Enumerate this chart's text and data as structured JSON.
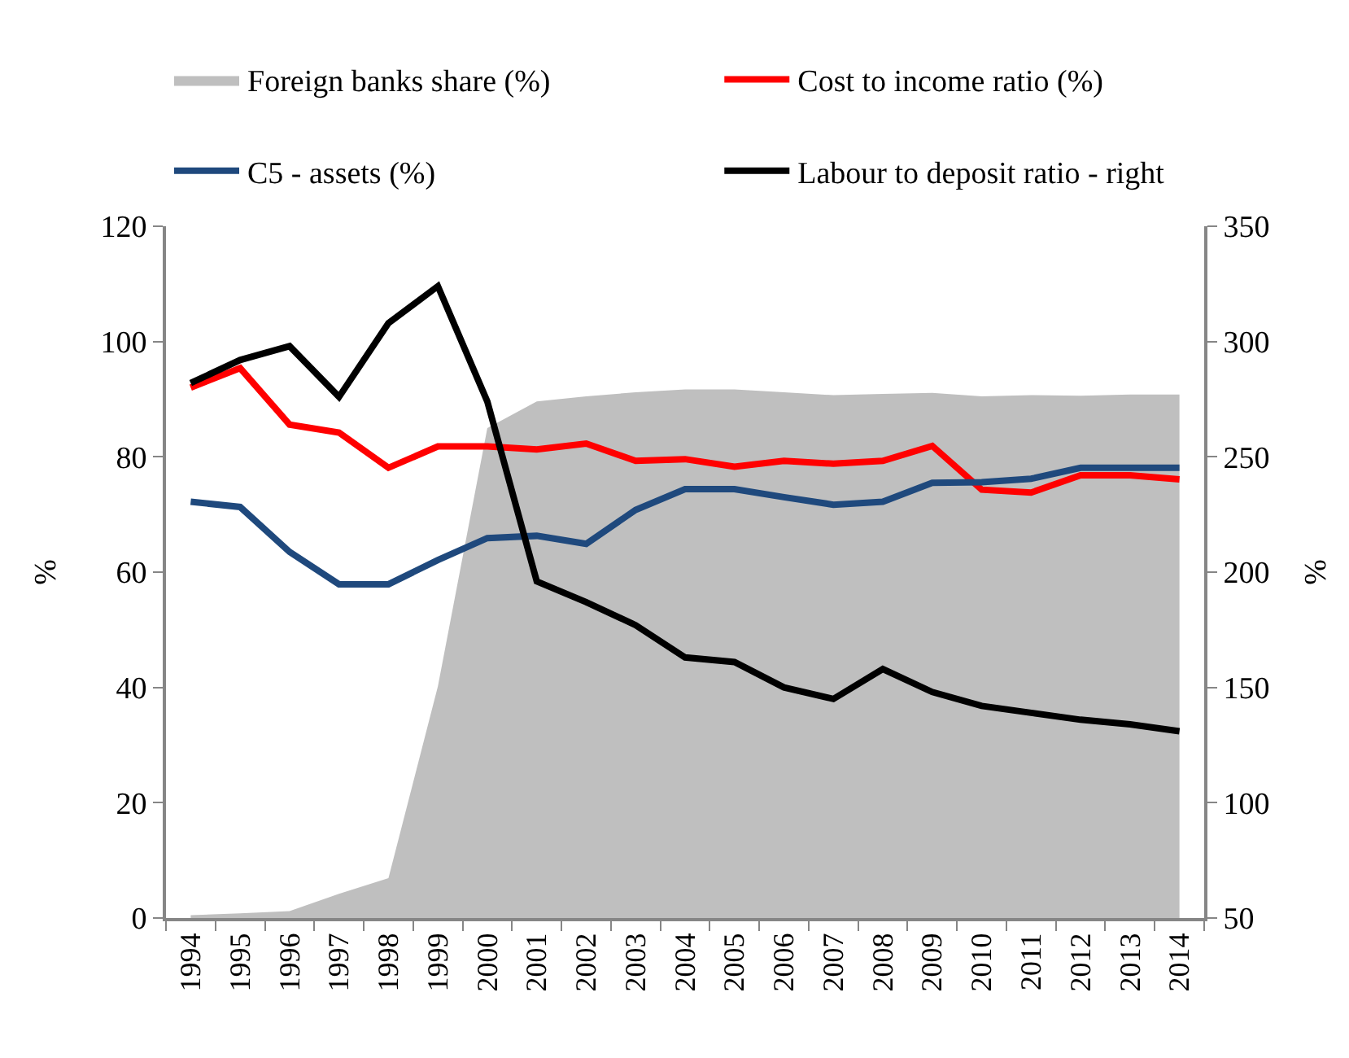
{
  "chart_data": {
    "type": "line",
    "ylabel": "%",
    "y2label": "%",
    "categories": [
      "1994",
      "1995",
      "1996",
      "1997",
      "1998",
      "1999",
      "2000",
      "2001",
      "2002",
      "2003",
      "2004",
      "2005",
      "2006",
      "2007",
      "2008",
      "2009",
      "2010",
      "2011",
      "2012",
      "2013",
      "2014"
    ],
    "series": [
      {
        "name": "Foreign banks share (%)",
        "type": "area",
        "color": "#bfbfbf",
        "values": [
          0.5,
          0.8,
          1.2,
          4.2,
          6.9,
          40.2,
          85,
          89.6,
          90.5,
          91.2,
          91.7,
          91.7,
          91.2,
          90.7,
          90.9,
          91.1,
          90.5,
          90.7,
          90.6,
          90.8,
          90.8
        ]
      },
      {
        "name": "Cost to income ratio (%)",
        "color": "#ff0000",
        "values": [
          92,
          95.4,
          85.6,
          84.2,
          78.1,
          81.8,
          81.8,
          81.3,
          82.3,
          79.3,
          79.6,
          78.3,
          79.3,
          78.8,
          79.3,
          81.9,
          74.3,
          73.8,
          76.8,
          76.8,
          76.1
        ]
      },
      {
        "name": "C5 - assets (%)",
        "color": "#1f497d",
        "values": [
          72.2,
          71.3,
          63.5,
          57.9,
          57.9,
          62.1,
          65.9,
          66.3,
          64.9,
          70.8,
          74.4,
          74.4,
          73,
          71.7,
          72.2,
          75.5,
          75.6,
          76.2,
          78.1,
          78.1,
          78.1
        ]
      },
      {
        "name": "Labour to deposit ratio - right",
        "color": "#000000",
        "axis": "y2",
        "values": [
          282,
          292,
          298,
          276,
          308,
          324,
          274,
          196,
          187,
          177,
          163,
          161,
          150,
          145,
          158,
          148,
          142,
          139,
          136,
          134,
          131
        ]
      }
    ],
    "ylim": [
      0,
      120
    ],
    "yticks": [
      0,
      20,
      40,
      60,
      80,
      100,
      120
    ],
    "y2lim": [
      50,
      350
    ],
    "y2ticks": [
      50,
      100,
      150,
      200,
      250,
      300,
      350
    ],
    "grid": false,
    "legend": "top"
  }
}
